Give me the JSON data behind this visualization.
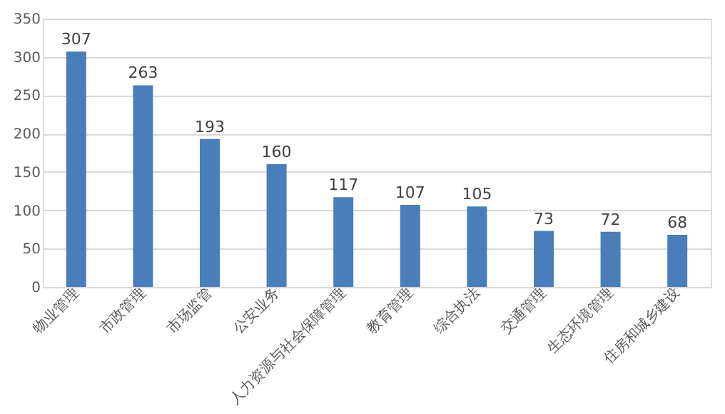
{
  "chart_data": {
    "type": "bar",
    "categories": [
      "物业管理",
      "市政管理",
      "市场监管",
      "公安业务",
      "人力资源与社会保障管理",
      "教育管理",
      "综合执法",
      "交通管理",
      "生态环境管理",
      "住房和城乡建设"
    ],
    "values": [
      307,
      263,
      193,
      160,
      117,
      107,
      105,
      73,
      72,
      68
    ],
    "color": "#4a7ebb",
    "ylim": [
      0,
      350
    ],
    "yticks": [
      0,
      50,
      100,
      150,
      200,
      250,
      300,
      350
    ],
    "grid": "y",
    "data_labels": true
  }
}
